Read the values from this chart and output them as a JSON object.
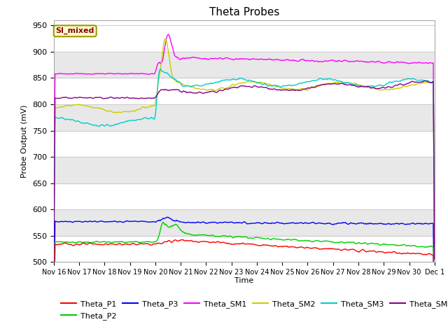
{
  "title": "Theta Probes",
  "xlabel": "Time",
  "ylabel": "Probe Output (mV)",
  "annotation_text": "SI_mixed",
  "annotation_color": "#8B0000",
  "annotation_bg": "#FFFFCC",
  "annotation_border": "#999900",
  "ylim": [
    500,
    960
  ],
  "yticks": [
    500,
    550,
    600,
    650,
    700,
    750,
    800,
    850,
    900,
    950
  ],
  "x_labels": [
    "Nov 16",
    "Nov 17",
    "Nov 18",
    "Nov 19",
    "Nov 20",
    "Nov 21",
    "Nov 22",
    "Nov 23",
    "Nov 24",
    "Nov 25",
    "Nov 26",
    "Nov 27",
    "Nov 28",
    "Nov 29",
    "Nov 30",
    "Dec 1"
  ],
  "num_points": 600,
  "series": {
    "Theta_P1": {
      "color": "#FF0000"
    },
    "Theta_P2": {
      "color": "#00CC00"
    },
    "Theta_P3": {
      "color": "#0000FF"
    },
    "Theta_SM1": {
      "color": "#FF00FF"
    },
    "Theta_SM2": {
      "color": "#CCCC00"
    },
    "Theta_SM3": {
      "color": "#00CCCC"
    },
    "Theta_SM4": {
      "color": "#880088"
    }
  },
  "band_colors": [
    "#FFFFFF",
    "#E8E8E8"
  ],
  "grid_color": "#CCCCCC",
  "fig_bg": "#FFFFFF",
  "ax_bg": "#FFFFFF"
}
